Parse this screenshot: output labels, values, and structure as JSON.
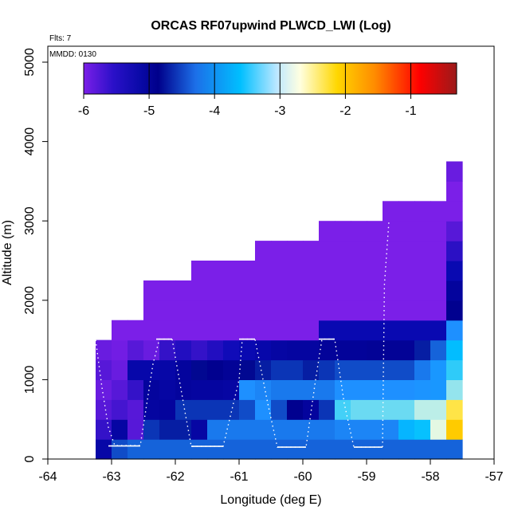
{
  "chart_data": {
    "type": "heatmap",
    "title": "ORCAS RF07upwind PLWCD_LWI (Log)",
    "xlabel": "Longitude (deg E)",
    "ylabel": "Altitude (m)",
    "xlim": [
      -64,
      -57
    ],
    "ylim": [
      0,
      5200
    ],
    "xticks": [
      "-64",
      "-63",
      "-62",
      "-61",
      "-60",
      "-59",
      "-58",
      "-57"
    ],
    "yticks": [
      "0",
      "1000",
      "2000",
      "3000",
      "4000",
      "5000"
    ],
    "annotations": {
      "flights": "Flts: 7",
      "date": "MMDD: 0130"
    },
    "colorbar": {
      "ticks": [
        "-6",
        "-5",
        "-4",
        "-3",
        "-2",
        "-1"
      ],
      "range": [
        -6,
        -0.3
      ],
      "colors": [
        "#7b1fe8",
        "#0a0ab5",
        "#00008b",
        "#1e90ff",
        "#00bfff",
        "#ffffe0",
        "#ffd700",
        "#ff8c00",
        "#ff0000",
        "#9b1a1a"
      ]
    },
    "grid": {
      "lon_start": -63.25,
      "lon_step": 0.25,
      "alt_step": 250
    },
    "columns": [
      [
        -5.15,
        -5.6,
        -5.8,
        -5.9,
        -5.8,
        -5.9
      ],
      [
        -4.4,
        -5.1,
        -5.7,
        -5.8,
        -5.9,
        -5.95,
        -6.0
      ],
      [
        -4.3,
        -5.8,
        -5.8,
        -5.6,
        -5.2,
        -5.8,
        -6.0
      ],
      [
        -4.3,
        -4.5,
        -5.05,
        -5.0,
        -5.2,
        -5.9,
        -6.0,
        -6.0,
        -6.0
      ],
      [
        -4.3,
        -4.6,
        -5.0,
        -5.1,
        -5.15,
        -5.6,
        -6.0,
        -6.0,
        -6.0
      ],
      [
        -4.3,
        -4.6,
        -4.5,
        -5.0,
        -5.0,
        -5.5,
        -6.0,
        -6.0,
        -6.0
      ],
      [
        -4.3,
        -5.1,
        -4.5,
        -5.05,
        -4.7,
        -5.6,
        -6.0,
        -6.0,
        -6.0,
        -6.0
      ],
      [
        -4.3,
        -4.2,
        -4.5,
        -5.05,
        -4.8,
        -5.5,
        -6.0,
        -6.0,
        -6.0,
        -6.0
      ],
      [
        -4.3,
        -4.2,
        -4.5,
        -5.1,
        -4.9,
        -5.4,
        -6.0,
        -6.0,
        -6.0,
        -6.0
      ],
      [
        -4.3,
        -4.2,
        -4.4,
        -4.1,
        -4.7,
        -5.3,
        -6.0,
        -6.0,
        -6.0,
        -6.0
      ],
      [
        -4.3,
        -4.2,
        -4.1,
        -4.15,
        -4.6,
        -5.2,
        -6.0,
        -6.0,
        -6.0,
        -6.0,
        -6.0
      ],
      [
        -4.3,
        -4.2,
        -4.4,
        -4.2,
        -4.5,
        -5.1,
        -6.0,
        -6.0,
        -6.0,
        -6.0,
        -6.0
      ],
      [
        -4.3,
        -4.2,
        -4.8,
        -4.2,
        -4.5,
        -5.05,
        -6.0,
        -6.0,
        -6.0,
        -6.0,
        -6.0
      ],
      [
        -4.3,
        -4.2,
        -5.0,
        -4.2,
        -4.6,
        -5.05,
        -6.0,
        -6.0,
        -6.0,
        -6.0,
        -6.0
      ],
      [
        -4.3,
        -4.2,
        -4.5,
        -4.2,
        -4.5,
        -4.95,
        -5.3,
        -6.0,
        -6.0,
        -6.0,
        -6.0,
        -6.0
      ],
      [
        -4.3,
        -4.15,
        -3.3,
        -4.1,
        -4.4,
        -4.95,
        -5.3,
        -6.0,
        -6.0,
        -6.0,
        -6.0,
        -6.0
      ],
      [
        -4.3,
        -4.15,
        -3.2,
        -4.1,
        -4.4,
        -4.95,
        -5.3,
        -6.0,
        -6.0,
        -6.0,
        -6.0,
        -6.0
      ],
      [
        -4.3,
        -4.15,
        -3.2,
        -4.1,
        -4.4,
        -4.9,
        -5.3,
        -6.0,
        -6.0,
        -6.0,
        -6.0,
        -6.0
      ],
      [
        -4.3,
        -4.15,
        -3.2,
        -4.1,
        -4.4,
        -4.9,
        -5.3,
        -6.0,
        -6.0,
        -6.0,
        -6.0,
        -6.0,
        -6.0
      ],
      [
        -4.3,
        -3.6,
        -3.2,
        -4.1,
        -4.4,
        -4.9,
        -5.3,
        -6.0,
        -6.0,
        -6.0,
        -6.0,
        -6.0,
        -6.0
      ],
      [
        -4.3,
        -3.45,
        -3.0,
        -4.05,
        -4.2,
        -4.6,
        -5.3,
        -6.0,
        -6.0,
        -6.0,
        -6.0,
        -6.0,
        -6.0
      ],
      [
        -4.3,
        -2.9,
        -3.0,
        -4.0,
        -4.0,
        -4.3,
        -5.3,
        -6.0,
        -6.0,
        -6.0,
        -6.0,
        -6.0,
        -6.0
      ],
      [
        -4.3,
        -2.1,
        -2.4,
        -3.1,
        -3.35,
        -3.5,
        -4.1,
        -4.8,
        -5.0,
        -5.3,
        -5.55,
        -5.8,
        -6.0,
        -6.0,
        -5.9
      ]
    ]
  }
}
